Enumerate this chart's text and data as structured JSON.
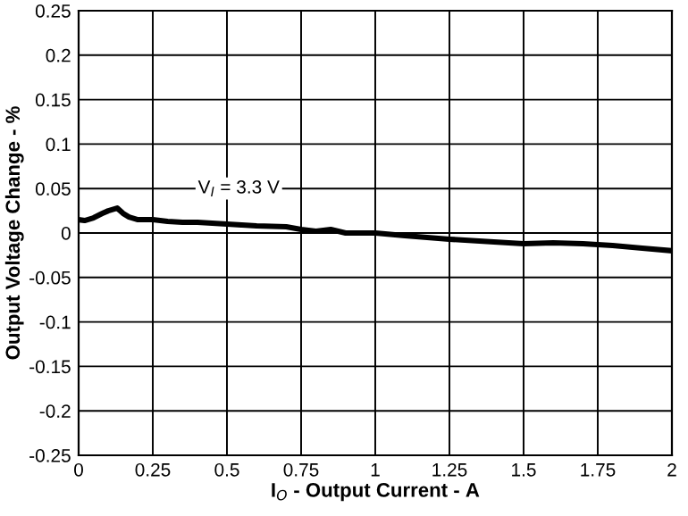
{
  "chart_data": {
    "type": "line",
    "xlabel": "I$_{O}$ - Output Current - A",
    "ylabel": "Output Voltage Change - %",
    "annotations": [
      "V$_{I}$ = 3.3 V"
    ],
    "series": [
      {
        "color": "#000000",
        "x": [
          0,
          0.02,
          0.05,
          0.08,
          0.1,
          0.13,
          0.15,
          0.17,
          0.2,
          0.25,
          0.3,
          0.35,
          0.4,
          0.45,
          0.5,
          0.6,
          0.7,
          0.75,
          0.8,
          0.85,
          0.9,
          0.95,
          1.0,
          1.1,
          1.25,
          1.4,
          1.5,
          1.6,
          1.7,
          1.8,
          1.9,
          2.0
        ],
        "values": [
          0.015,
          0.014,
          0.017,
          0.022,
          0.025,
          0.028,
          0.022,
          0.018,
          0.015,
          0.015,
          0.013,
          0.012,
          0.012,
          0.011,
          0.01,
          0.008,
          0.007,
          0.004,
          0.002,
          0.004,
          0.0,
          0.0,
          0.0,
          -0.003,
          -0.007,
          -0.01,
          -0.012,
          -0.011,
          -0.012,
          -0.014,
          -0.017,
          -0.02
        ]
      }
    ],
    "xlim": [
      0,
      2
    ],
    "xticks": [
      0,
      0.25,
      0.5,
      0.75,
      1,
      1.25,
      1.5,
      1.75,
      2
    ],
    "ylim": [
      -0.25,
      0.25
    ],
    "yticks": [
      -0.25,
      -0.2,
      -0.15,
      -0.1,
      -0.05,
      0,
      0.05,
      0.1,
      0.15,
      0.2,
      0.25
    ],
    "grid": true,
    "line_style": "solid",
    "marker": "none"
  }
}
